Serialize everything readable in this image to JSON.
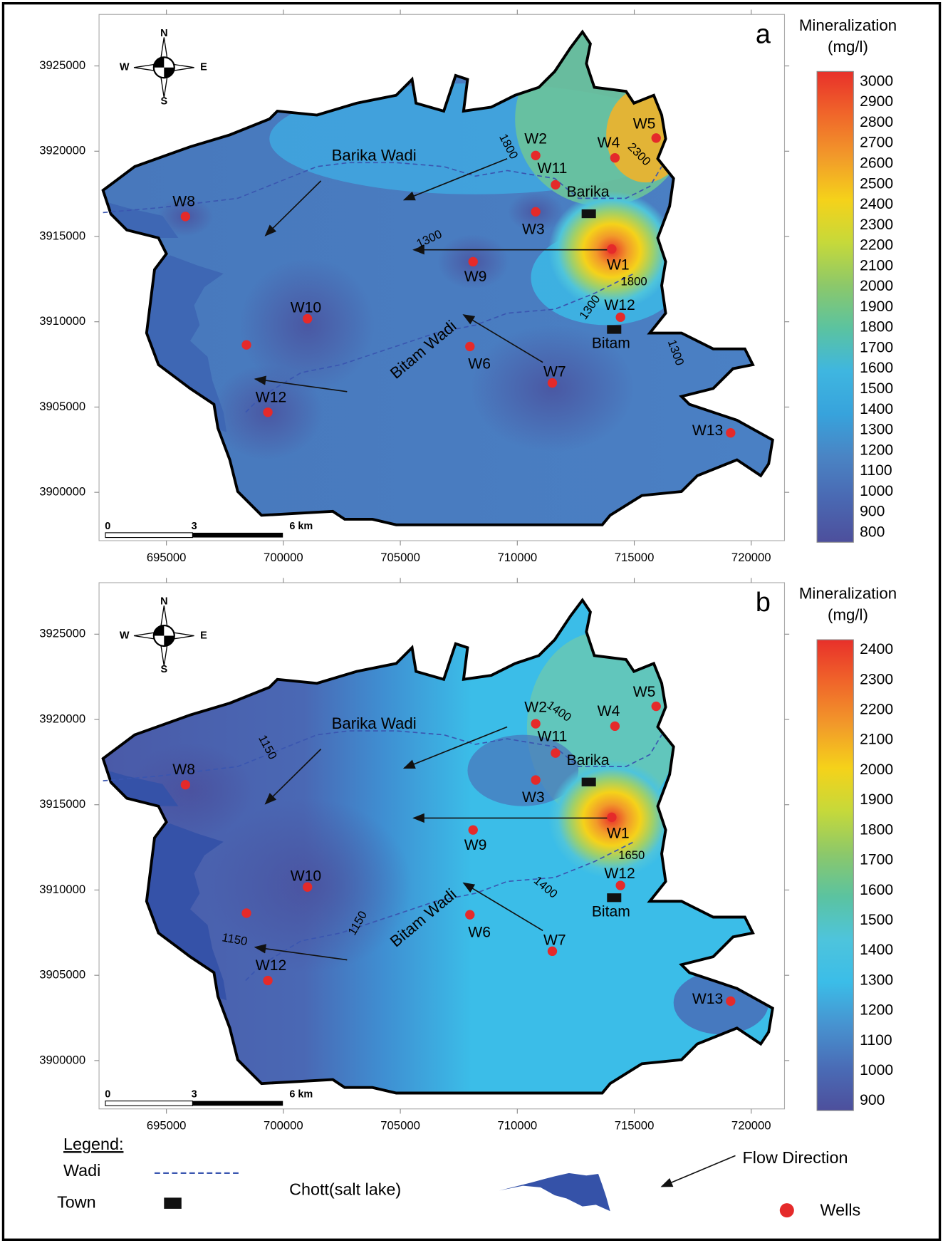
{
  "panels": [
    {
      "label": "a",
      "colorbar": {
        "title": [
          "Mineralization",
          "(mg/l)"
        ],
        "ticks": [
          3000,
          2900,
          2800,
          2700,
          2600,
          2500,
          2400,
          2300,
          2200,
          2100,
          2000,
          1900,
          1800,
          1700,
          1600,
          1500,
          1400,
          1300,
          1200,
          1100,
          1000,
          900,
          800
        ]
      },
      "x_ticks": [
        695000,
        700000,
        705000,
        710000,
        715000,
        720000
      ],
      "y_ticks": [
        3925000,
        3920000,
        3915000,
        3910000,
        3905000,
        3900000
      ],
      "wells": [
        "W2",
        "W11",
        "W3",
        "W4",
        "W5",
        "W1",
        "W12",
        "W9",
        "W10",
        "W6",
        "W7",
        "W12",
        "W8",
        "W13"
      ],
      "wadis": [
        "Barika Wadi",
        "Bitam Wadi"
      ],
      "towns": [
        "Barika",
        "Bitam"
      ],
      "contour_labels": [
        1800,
        2300,
        1300,
        1800,
        1300,
        1300
      ],
      "scale_bar": [
        "0",
        "3",
        "6 km"
      ],
      "compass": [
        "N",
        "S",
        "W",
        "E"
      ]
    },
    {
      "label": "b",
      "colorbar": {
        "title": [
          "Mineralization",
          "(mg/l)"
        ],
        "ticks": [
          2400,
          2300,
          2200,
          2100,
          2000,
          1900,
          1800,
          1700,
          1600,
          1500,
          1400,
          1300,
          1200,
          1100,
          1000,
          900
        ]
      },
      "x_ticks": [
        695000,
        700000,
        705000,
        710000,
        715000,
        720000
      ],
      "y_ticks": [
        3925000,
        3920000,
        3915000,
        3910000,
        3905000,
        3900000
      ],
      "wells": [
        "W2",
        "W11",
        "W3",
        "W4",
        "W5",
        "W1",
        "W12",
        "W9",
        "W10",
        "W6",
        "W7",
        "W12",
        "W8",
        "W13"
      ],
      "wadis": [
        "Barika Wadi",
        "Bitam Wadi"
      ],
      "towns": [
        "Barika",
        "Bitam"
      ],
      "contour_labels": [
        1400,
        1150,
        1650,
        1400,
        1150,
        1150
      ],
      "scale_bar": [
        "0",
        "3",
        "6 km"
      ],
      "compass": [
        "N",
        "S",
        "W",
        "E"
      ]
    }
  ],
  "legend": {
    "title": "Legend:",
    "wadi": "Wadi",
    "town": "Town",
    "chott": "Chott(salt lake)",
    "flow": "Flow Direction",
    "wells": "Wells"
  }
}
